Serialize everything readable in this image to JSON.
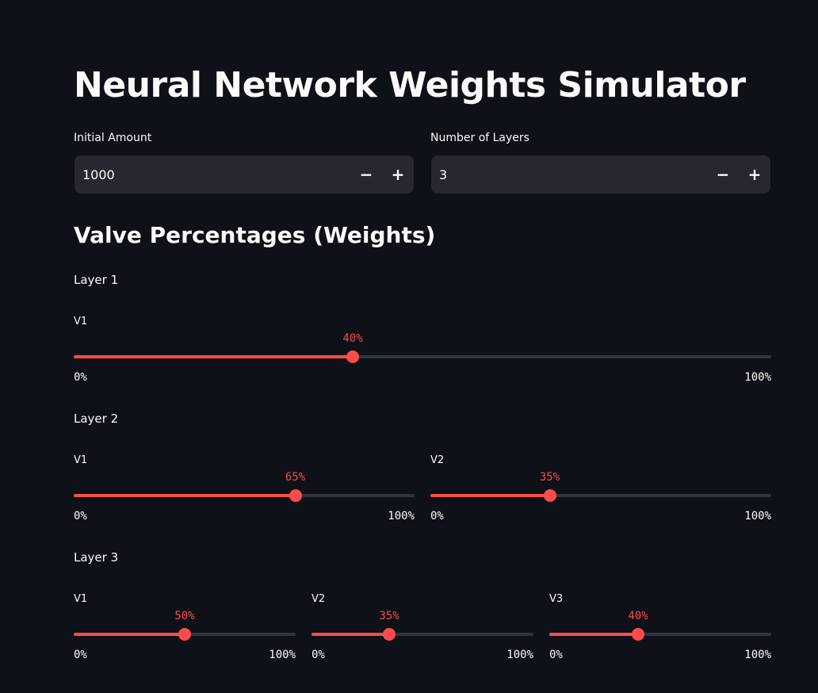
{
  "page": {
    "title": "Neural Network Weights Simulator",
    "section_title": "Valve Percentages (Weights)"
  },
  "inputs": {
    "initial_amount": {
      "label": "Initial Amount",
      "value": "1000",
      "minus": "−",
      "plus": "+"
    },
    "num_layers": {
      "label": "Number of Layers",
      "value": "3",
      "minus": "−",
      "plus": "+"
    }
  },
  "layers": [
    {
      "label": "Layer 1",
      "sliders": [
        {
          "label": "V1",
          "value": 40,
          "value_text": "40%",
          "min_text": "0%",
          "max_text": "100%"
        }
      ]
    },
    {
      "label": "Layer 2",
      "sliders": [
        {
          "label": "V1",
          "value": 65,
          "value_text": "65%",
          "min_text": "0%",
          "max_text": "100%"
        },
        {
          "label": "V2",
          "value": 35,
          "value_text": "35%",
          "min_text": "0%",
          "max_text": "100%"
        }
      ]
    },
    {
      "label": "Layer 3",
      "sliders": [
        {
          "label": "V1",
          "value": 50,
          "value_text": "50%",
          "min_text": "0%",
          "max_text": "100%"
        },
        {
          "label": "V2",
          "value": 35,
          "value_text": "35%",
          "min_text": "0%",
          "max_text": "100%"
        },
        {
          "label": "V3",
          "value": 40,
          "value_text": "40%",
          "min_text": "0%",
          "max_text": "100%"
        }
      ]
    }
  ],
  "colors": {
    "background": "#0e1117",
    "accent": "#ff4b4b",
    "input_bg": "#262730",
    "track": "#31333f",
    "text": "#fafafa"
  }
}
